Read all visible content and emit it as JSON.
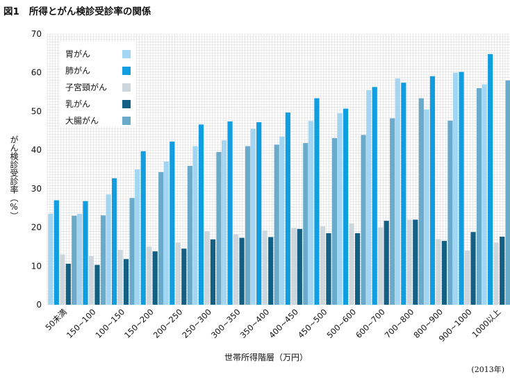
{
  "figure": {
    "title_no": "図1",
    "title": "所得とがん検診受診率の関係",
    "note": "(2013年)"
  },
  "chart_data": {
    "type": "bar",
    "title": "所得とがん検診受診率の関係",
    "xlabel": "世帯所得階層（万円）",
    "ylabel": "がん検診受診率（%）",
    "ylim": [
      0,
      70
    ],
    "yticks": [
      0,
      10,
      20,
      30,
      40,
      50,
      60,
      70
    ],
    "grid": true,
    "legend_position": "top-left",
    "categories": [
      "50未満",
      "150~100",
      "100~150",
      "150~200",
      "200~250",
      "250~300",
      "300~350",
      "350~400",
      "400~450",
      "450~500",
      "500~600",
      "600~700",
      "700~800",
      "800~900",
      "900~1000",
      "1000以上"
    ],
    "series": [
      {
        "name": "胃がん",
        "color": "#a3d6f3",
        "values": [
          23.5,
          23.5,
          28.5,
          35,
          37,
          41,
          42.5,
          45.5,
          43.5,
          47.5,
          49.5,
          55.5,
          58.5,
          50.5,
          60,
          57
        ]
      },
      {
        "name": "肺がん",
        "color": "#109ee0",
        "values": [
          27,
          26.8,
          32.7,
          39.7,
          42.2,
          46.6,
          47.4,
          47.2,
          49.7,
          53.4,
          50.7,
          56.3,
          57.4,
          59.1,
          60.2,
          64.8
        ]
      },
      {
        "name": "子宮頸がん",
        "color": "#cdd6dc",
        "values": [
          13,
          12.6,
          14.2,
          15,
          16,
          19,
          18.2,
          19.2,
          19.9,
          20.3,
          21,
          20,
          22,
          17,
          14,
          16
        ]
      },
      {
        "name": "乳がん",
        "color": "#145f84",
        "values": [
          10.6,
          10.3,
          11.8,
          13.8,
          14.5,
          16.9,
          17.3,
          17.5,
          19.6,
          18.5,
          18.5,
          21.7,
          22,
          16.5,
          18.8,
          17.6
        ]
      },
      {
        "name": "大腸がん",
        "color": "#6aaacb",
        "values": [
          23,
          23.1,
          27.6,
          34.3,
          35.9,
          39.5,
          41,
          41.4,
          41.8,
          43.1,
          43.9,
          48.2,
          53.4,
          47.6,
          56,
          58
        ]
      }
    ]
  }
}
